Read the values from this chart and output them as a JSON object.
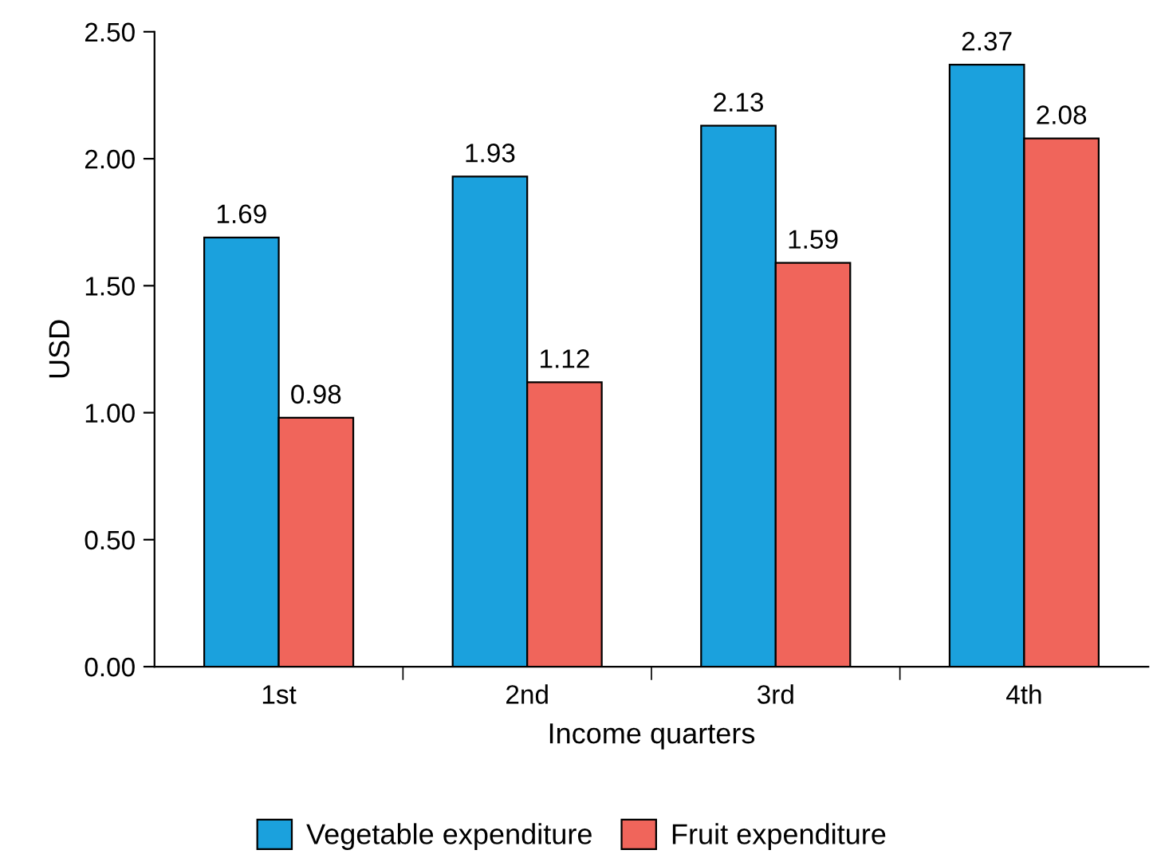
{
  "chart_data": {
    "type": "bar",
    "xlabel": "Income quarters",
    "ylabel": "USD",
    "categories": [
      "1st",
      "2nd",
      "3rd",
      "4th"
    ],
    "series": [
      {
        "name": "Vegetable expenditure",
        "color": "#1ba1dd",
        "values": [
          1.69,
          1.93,
          2.13,
          2.37
        ]
      },
      {
        "name": "Fruit expenditure",
        "color": "#f0655b",
        "values": [
          0.98,
          1.12,
          1.59,
          2.08
        ]
      }
    ],
    "ylim": [
      0,
      2.5
    ],
    "yticks": [
      {
        "value": 0,
        "label": "0.00"
      },
      {
        "value": 0.5,
        "label": "0.50"
      },
      {
        "value": 1,
        "label": "1.00"
      },
      {
        "value": 1.5,
        "label": "1.50"
      },
      {
        "value": 2,
        "label": "2.00"
      },
      {
        "value": 2.5,
        "label": "2.50"
      }
    ],
    "data_labels": true,
    "grid": false,
    "legend": "bottom"
  }
}
